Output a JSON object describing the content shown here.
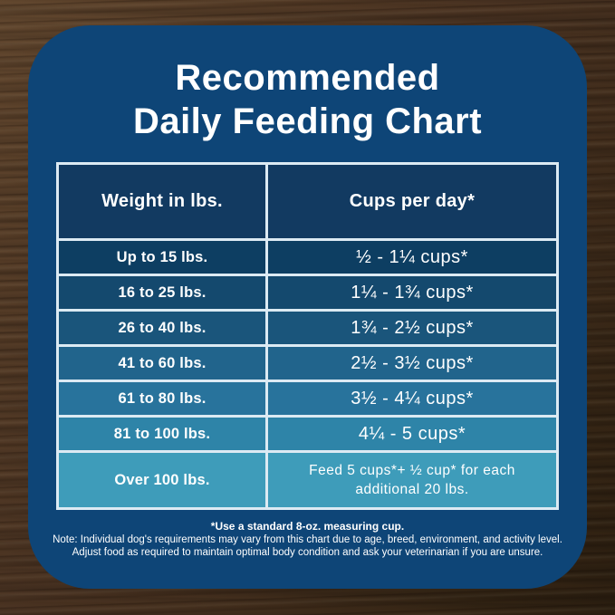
{
  "title": {
    "line1": "Recommended",
    "line2": "Daily Feeding Chart"
  },
  "chart_data": {
    "type": "table",
    "title": "Recommended Daily Feeding Chart",
    "columns": [
      "Weight in lbs.",
      "Cups per day*"
    ],
    "rows": [
      [
        "Up to 15 lbs.",
        "½ - 1¼ cups*"
      ],
      [
        "16 to 25 lbs.",
        "1¼ - 1¾  cups*"
      ],
      [
        "26 to 40 lbs.",
        "1¾ - 2½ cups*"
      ],
      [
        "41 to 60 lbs.",
        "2½ - 3½ cups*"
      ],
      [
        "61 to 80 lbs.",
        "3½ - 4¼ cups*"
      ],
      [
        "81 to 100 lbs.",
        "4¼ - 5 cups*"
      ],
      [
        "Over 100 lbs.",
        "Feed 5 cups*+ ½ cup* for each additional 20 lbs."
      ]
    ]
  },
  "footnotes": {
    "measuring_cup": "*Use a standard 8-oz. measuring cup.",
    "note": "Note: Individual dog's requirements may vary from this chart due to age, breed, environment, and activity level.",
    "adjust": "Adjust food as required to maintain optimal body condition and ask your veterinarian if you are unsure."
  },
  "colors": {
    "card_bg": "#0e4577",
    "header_cell_bg": "#123a61",
    "table_border": "#dceaf3",
    "text": "#ffffff",
    "row_colors": [
      "#0d3e62",
      "#14496e",
      "#1a557b",
      "#21648c",
      "#28739c",
      "#2e84a8",
      "#3e9cba"
    ]
  }
}
